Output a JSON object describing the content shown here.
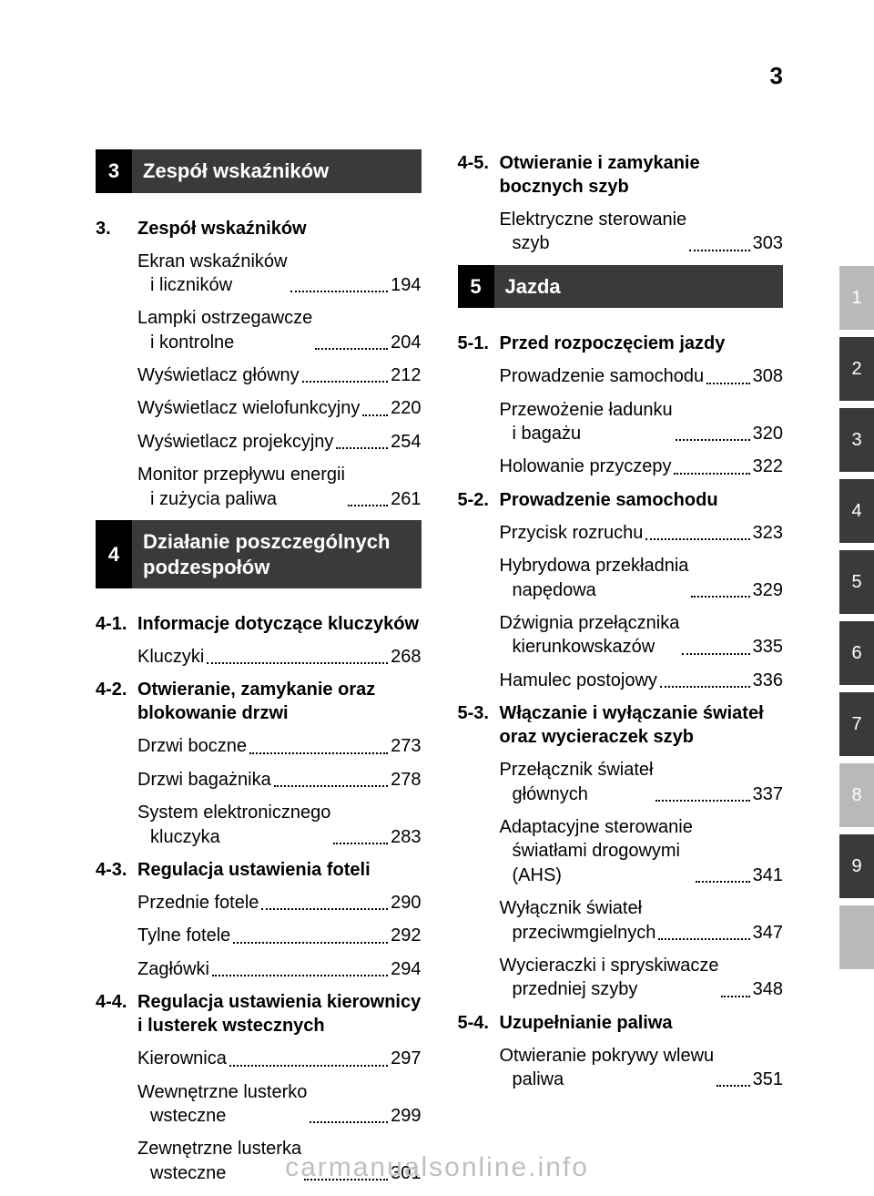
{
  "page_number": "3",
  "footer": "carmanualsonline.info",
  "left": {
    "chapters": [
      {
        "num": "3",
        "title": "Zespół wskaźników",
        "sections": [
          {
            "num": "3.",
            "title": "Zespół wskaźników",
            "entries": [
              {
                "line1": "Ekran wskaźników",
                "line2": "i liczników",
                "page": "194"
              },
              {
                "line1": "Lampki ostrzegawcze",
                "line2": "i kontrolne",
                "page": "204"
              },
              {
                "line1": "Wyświetlacz główny",
                "page": "212"
              },
              {
                "line1": "Wyświetlacz wielofunkcyjny",
                "page": "220"
              },
              {
                "line1": "Wyświetlacz projekcyjny",
                "page": "254"
              },
              {
                "line1": "Monitor przepływu energii",
                "line2": "i zużycia paliwa",
                "page": "261"
              }
            ]
          }
        ]
      },
      {
        "num": "4",
        "title": "Działanie poszczególnych podzespołów",
        "sections": [
          {
            "num": "4-1.",
            "title": "Informacje dotyczące kluczyków",
            "entries": [
              {
                "line1": "Kluczyki",
                "page": "268"
              }
            ]
          },
          {
            "num": "4-2.",
            "title": "Otwieranie, zamykanie oraz blokowanie drzwi",
            "entries": [
              {
                "line1": "Drzwi boczne",
                "page": "273"
              },
              {
                "line1": "Drzwi bagażnika",
                "page": "278"
              },
              {
                "line1": "System elektronicznego",
                "line2": "kluczyka",
                "page": "283"
              }
            ]
          },
          {
            "num": "4-3.",
            "title": "Regulacja ustawienia foteli",
            "entries": [
              {
                "line1": "Przednie fotele",
                "page": "290"
              },
              {
                "line1": "Tylne fotele",
                "page": "292"
              },
              {
                "line1": "Zagłówki",
                "page": "294"
              }
            ]
          },
          {
            "num": "4-4.",
            "title": "Regulacja ustawienia kierownicy i lusterek wstecznych",
            "entries": [
              {
                "line1": "Kierownica",
                "page": "297"
              },
              {
                "line1": "Wewnętrzne lusterko",
                "line2": "wsteczne",
                "page": "299"
              },
              {
                "line1": "Zewnętrzne lusterka",
                "line2": "wsteczne",
                "page": "301"
              }
            ]
          }
        ]
      }
    ]
  },
  "right": {
    "pre_sections": [
      {
        "num": "4-5.",
        "title": "Otwieranie i zamykanie bocznych szyb",
        "entries": [
          {
            "line1": "Elektryczne sterowanie",
            "line2": "szyb",
            "page": "303"
          }
        ]
      }
    ],
    "chapters": [
      {
        "num": "5",
        "title": "Jazda",
        "sections": [
          {
            "num": "5-1.",
            "title": "Przed rozpoczęciem jazdy",
            "entries": [
              {
                "line1": "Prowadzenie samochodu",
                "page": "308"
              },
              {
                "line1": "Przewożenie ładunku",
                "line2": "i bagażu",
                "page": "320"
              },
              {
                "line1": "Holowanie przyczepy",
                "page": "322"
              }
            ]
          },
          {
            "num": "5-2.",
            "title": "Prowadzenie samochodu",
            "entries": [
              {
                "line1": "Przycisk rozruchu",
                "page": "323"
              },
              {
                "line1": "Hybrydowa przekładnia",
                "line2": "napędowa",
                "page": "329"
              },
              {
                "line1": "Dźwignia przełącznika",
                "line2": "kierunkowskazów",
                "page": "335"
              },
              {
                "line1": "Hamulec postojowy",
                "page": "336"
              }
            ]
          },
          {
            "num": "5-3.",
            "title": "Włączanie i wyłączanie świateł oraz wycieraczek szyb",
            "entries": [
              {
                "line1": "Przełącznik świateł",
                "line2": "głównych",
                "page": "337"
              },
              {
                "line1": "Adaptacyjne sterowanie",
                "line2": "światłami drogowymi",
                "line3": "(AHS)",
                "page": "341"
              },
              {
                "line1": "Wyłącznik świateł",
                "line2": "przeciwmgielnych",
                "page": "347"
              },
              {
                "line1": "Wycieraczki i spryskiwacze",
                "line2": "przedniej szyby",
                "page": "348"
              }
            ]
          },
          {
            "num": "5-4.",
            "title": "Uzupełnianie paliwa",
            "entries": [
              {
                "line1": "Otwieranie pokrywy wlewu",
                "line2": "paliwa",
                "page": "351"
              }
            ]
          }
        ]
      }
    ]
  },
  "tabs": [
    {
      "label": "1",
      "shade": "light"
    },
    {
      "label": "2",
      "shade": "dark"
    },
    {
      "label": "3",
      "shade": "dark"
    },
    {
      "label": "4",
      "shade": "dark"
    },
    {
      "label": "5",
      "shade": "dark"
    },
    {
      "label": "6",
      "shade": "dark"
    },
    {
      "label": "7",
      "shade": "dark"
    },
    {
      "label": "8",
      "shade": "light"
    },
    {
      "label": "9",
      "shade": "dark"
    },
    {
      "label": "",
      "shade": "light"
    }
  ]
}
